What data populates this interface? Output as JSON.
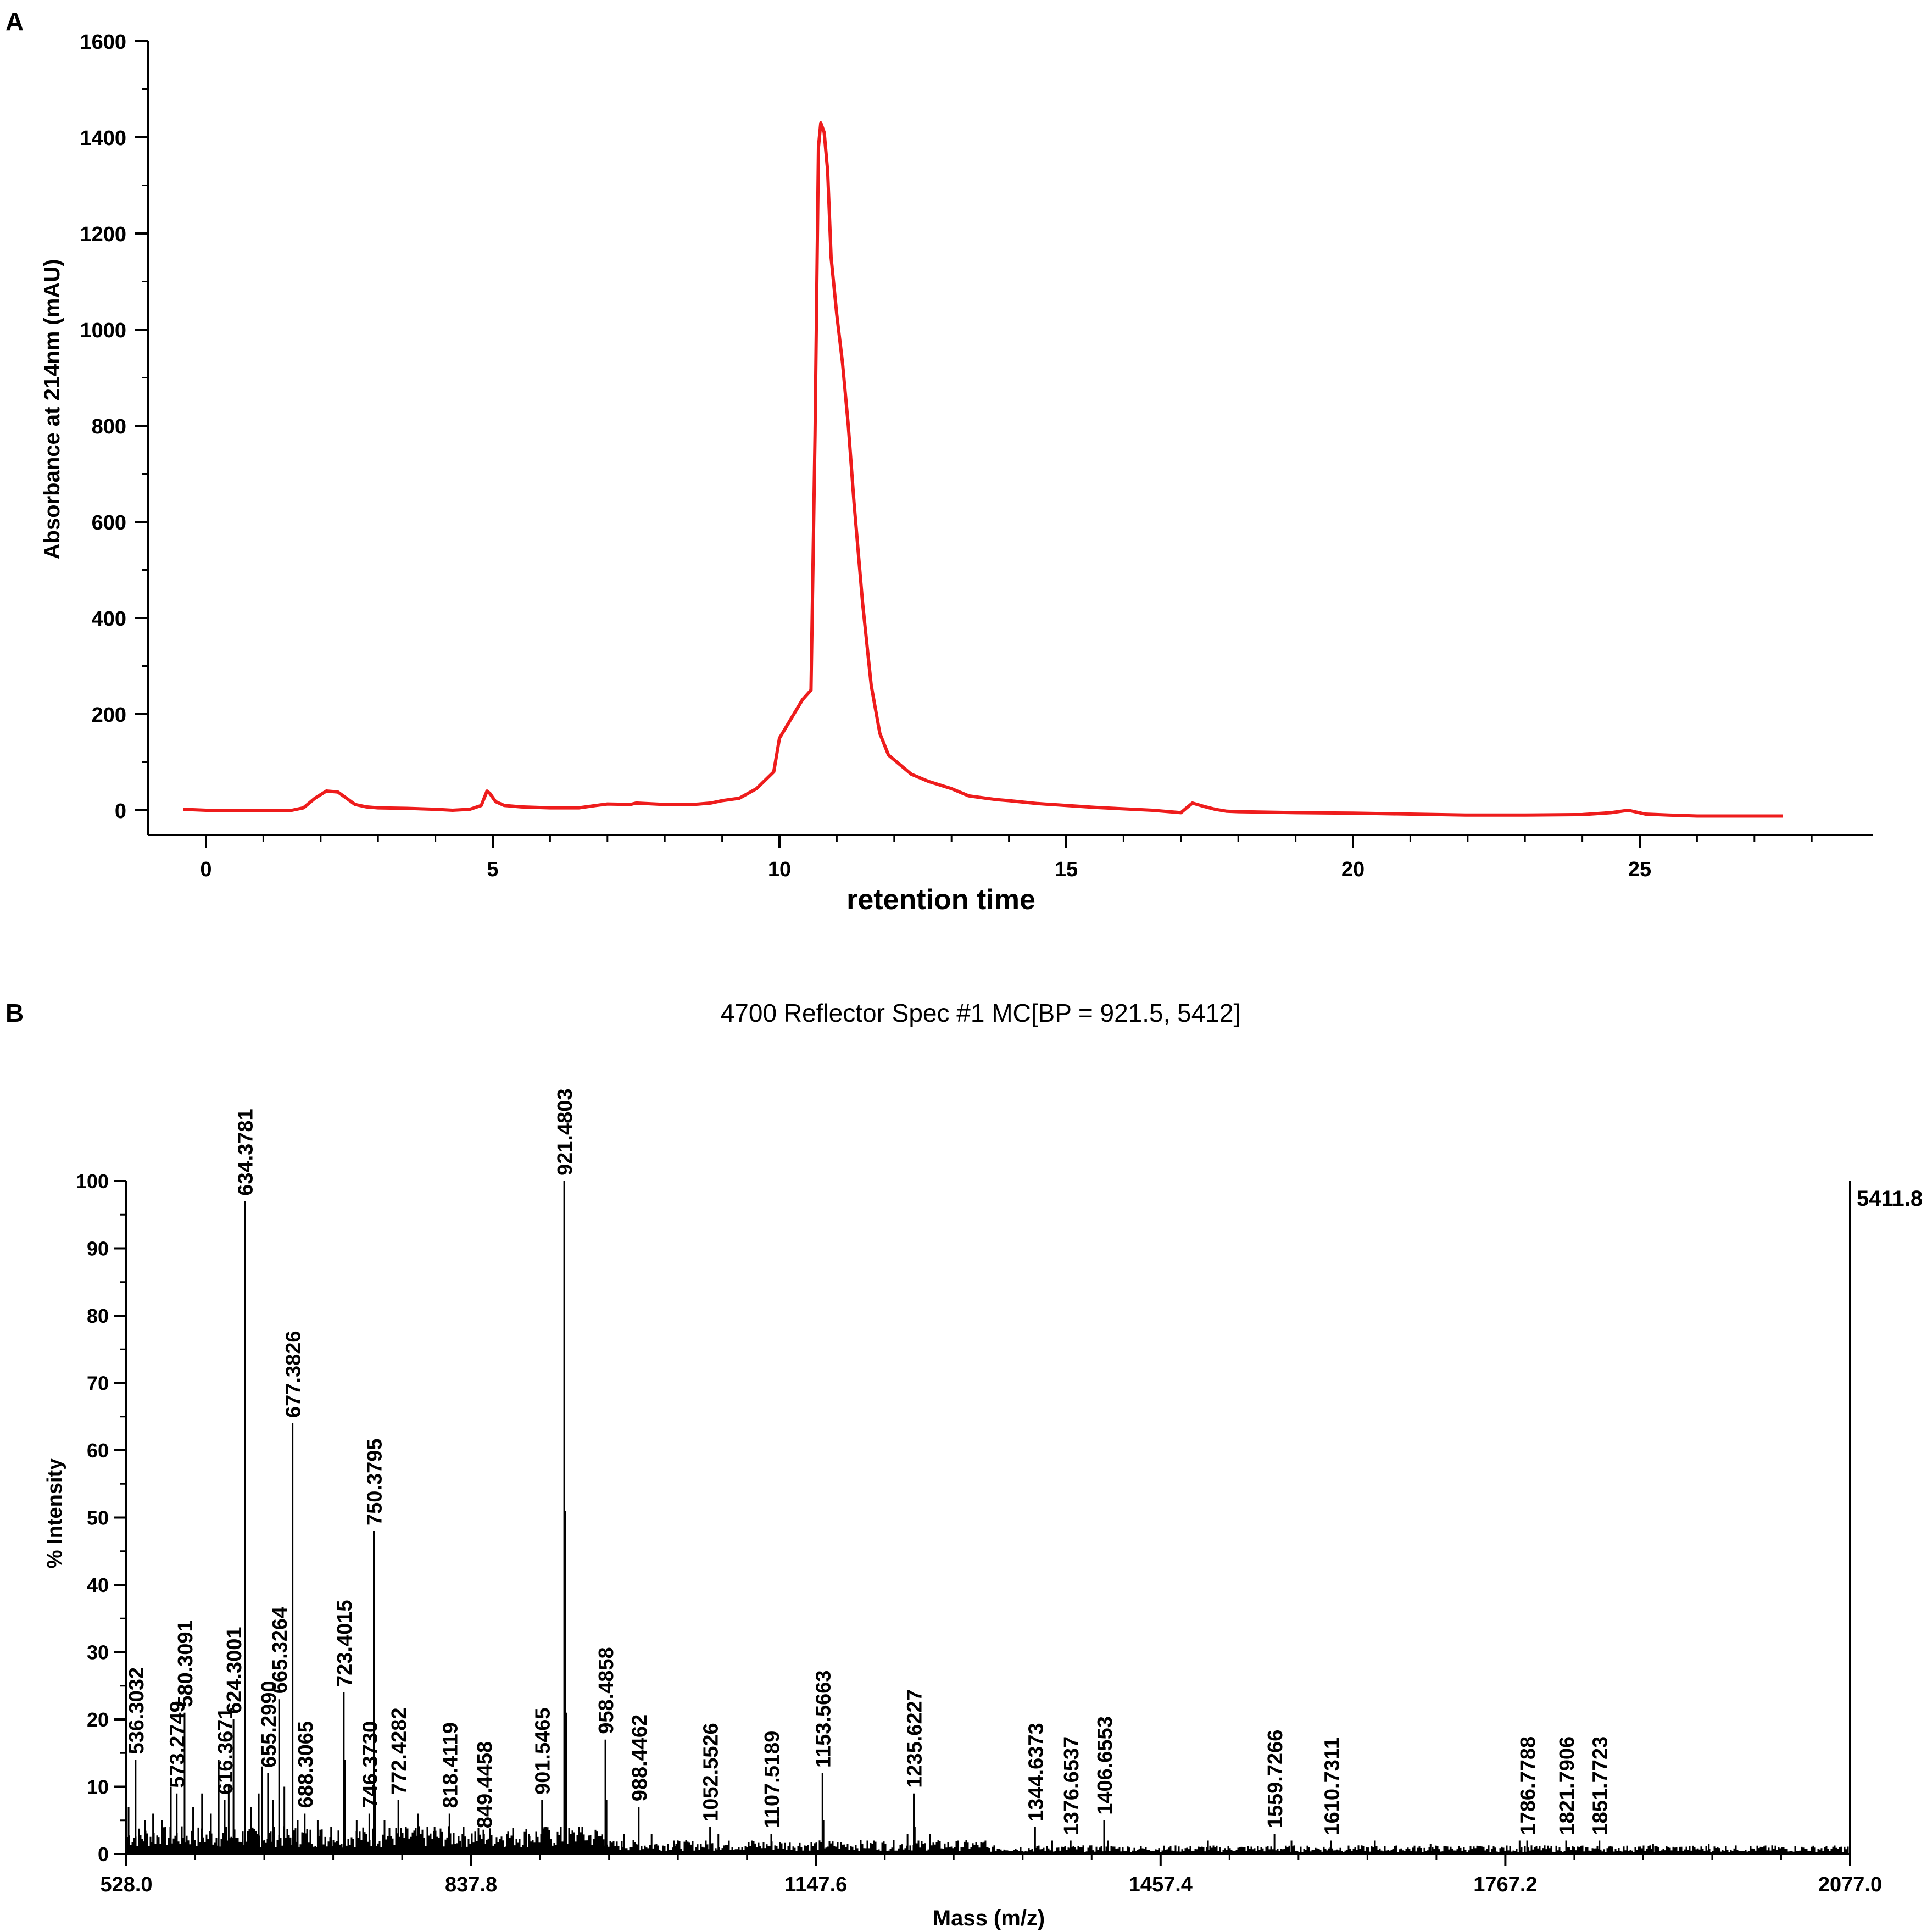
{
  "panels": {
    "a_label": "A",
    "b_label": "B"
  },
  "chart_data": [
    {
      "type": "line",
      "title": "",
      "xlabel": "retention time",
      "ylabel": "Absorbance at 214nm (mAU)",
      "xlim": [
        -1,
        29
      ],
      "ylim": [
        -50,
        1600
      ],
      "xticks": [
        0,
        5,
        10,
        15,
        20,
        25
      ],
      "yticks": [
        0,
        200,
        400,
        600,
        800,
        1000,
        1200,
        1400,
        1600
      ],
      "grid": false,
      "color": "#ee1c1c",
      "series": [
        {
          "x": [
            -0.4,
            0,
            0.5,
            1.0,
            1.5,
            1.7,
            1.9,
            2.1,
            2.3,
            2.45,
            2.6,
            2.8,
            3.0,
            3.5,
            4.0,
            4.3,
            4.6,
            4.8,
            4.9,
            4.95,
            5.05,
            5.2,
            5.5,
            6.0,
            6.5,
            6.8,
            7.0,
            7.4,
            7.5,
            8.0,
            8.5,
            8.8,
            9.0,
            9.3,
            9.6,
            9.9,
            10.0,
            10.2,
            10.4,
            10.55,
            10.62,
            10.68,
            10.72,
            10.78,
            10.84,
            10.9,
            11.0,
            11.1,
            11.2,
            11.3,
            11.45,
            11.6,
            11.75,
            11.9,
            12.1,
            12.3,
            12.6,
            13.0,
            13.3,
            13.6,
            13.8,
            14.0,
            14.5,
            15.0,
            15.5,
            16.0,
            16.5,
            17.0,
            17.1,
            17.2,
            17.4,
            17.6,
            17.8,
            18.0,
            19.0,
            20.0,
            21.0,
            22.0,
            23.0,
            24.0,
            24.5,
            24.8,
            25.1,
            25.5,
            26.0,
            27.0,
            27.5
          ],
          "y": [
            2,
            0,
            0,
            0,
            0,
            5,
            25,
            40,
            38,
            25,
            12,
            7,
            5,
            4,
            2,
            0,
            2,
            10,
            40,
            35,
            18,
            10,
            7,
            5,
            5,
            10,
            13,
            12,
            15,
            12,
            12,
            15,
            20,
            25,
            45,
            80,
            150,
            190,
            230,
            250,
            780,
            1380,
            1430,
            1410,
            1330,
            1150,
            1030,
            930,
            800,
            640,
            430,
            260,
            160,
            115,
            95,
            75,
            60,
            45,
            30,
            25,
            22,
            20,
            14,
            10,
            6,
            3,
            0,
            -5,
            5,
            15,
            8,
            2,
            -2,
            -3,
            -5,
            -6,
            -8,
            -10,
            -10,
            -9,
            -5,
            0,
            -8,
            -10,
            -12,
            -12,
            -12
          ]
        }
      ]
    },
    {
      "type": "bar",
      "title": "4700 Reflector Spec #1 MC[BP = 921.5, 5412]",
      "xlabel": "Mass (m/z)",
      "ylabel": "% Intensity",
      "xlim": [
        528.0,
        2077.0
      ],
      "ylim": [
        0,
        100
      ],
      "xticks": [
        "528.0",
        "837.8",
        "1147.6",
        "1457.4",
        "1767.2",
        "2077.0"
      ],
      "yticks": [
        0,
        10,
        20,
        30,
        40,
        50,
        60,
        70,
        80,
        90,
        100
      ],
      "max_intensity_label": "5411.8",
      "grid": false,
      "peaks": [
        {
          "mz": 536.3032,
          "label": "536.3032",
          "intensity": 14
        },
        {
          "mz": 573.2749,
          "label": "573.2749",
          "intensity": 9
        },
        {
          "mz": 580.3091,
          "label": "580.3091",
          "intensity": 21
        },
        {
          "mz": 616.3671,
          "label": "616.3671",
          "intensity": 8
        },
        {
          "mz": 624.3001,
          "label": "624.3001",
          "intensity": 20
        },
        {
          "mz": 634.3781,
          "label": "634.3781",
          "intensity": 97
        },
        {
          "mz": 655.299,
          "label": "655.2990",
          "intensity": 12
        },
        {
          "mz": 665.3264,
          "label": "665.3264",
          "intensity": 23
        },
        {
          "mz": 677.3826,
          "label": "677.3826",
          "intensity": 64
        },
        {
          "mz": 688.3065,
          "label": "688.3065",
          "intensity": 6
        },
        {
          "mz": 723.4015,
          "label": "723.4015",
          "intensity": 24
        },
        {
          "mz": 746.373,
          "label": "746.3730",
          "intensity": 6
        },
        {
          "mz": 750.3795,
          "label": "750.3795",
          "intensity": 48
        },
        {
          "mz": 772.4282,
          "label": "772.4282",
          "intensity": 8
        },
        {
          "mz": 818.4119,
          "label": "818.4119",
          "intensity": 6
        },
        {
          "mz": 849.4458,
          "label": "849.4458",
          "intensity": 3
        },
        {
          "mz": 901.5465,
          "label": "901.5465",
          "intensity": 8
        },
        {
          "mz": 921.4803,
          "label": "921.4803",
          "intensity": 100
        },
        {
          "mz": 958.4858,
          "label": "958.4858",
          "intensity": 17
        },
        {
          "mz": 988.4462,
          "label": "988.4462",
          "intensity": 7
        },
        {
          "mz": 1052.5526,
          "label": "1052.5526",
          "intensity": 4
        },
        {
          "mz": 1107.5189,
          "label": "1107.5189",
          "intensity": 3
        },
        {
          "mz": 1153.5663,
          "label": "1153.5663",
          "intensity": 12
        },
        {
          "mz": 1235.6227,
          "label": "1235.6227",
          "intensity": 9
        },
        {
          "mz": 1344.6373,
          "label": "1344.6373",
          "intensity": 4
        },
        {
          "mz": 1376.6537,
          "label": "1376.6537",
          "intensity": 2
        },
        {
          "mz": 1406.6553,
          "label": "1406.6553",
          "intensity": 5
        },
        {
          "mz": 1559.7266,
          "label": "1559.7266",
          "intensity": 3
        },
        {
          "mz": 1610.7311,
          "label": "1610.7311",
          "intensity": 2
        },
        {
          "mz": 1786.7788,
          "label": "1786.7788",
          "intensity": 2
        },
        {
          "mz": 1821.7906,
          "label": "1821.7906",
          "intensity": 2
        },
        {
          "mz": 1851.7723,
          "label": "1851.7723",
          "intensity": 2
        }
      ],
      "minor_peaks": [
        {
          "mz": 530.0,
          "intensity": 7
        },
        {
          "mz": 545.0,
          "intensity": 5
        },
        {
          "mz": 552.0,
          "intensity": 6
        },
        {
          "mz": 560.0,
          "intensity": 5
        },
        {
          "mz": 568.0,
          "intensity": 10
        },
        {
          "mz": 588.0,
          "intensity": 7
        },
        {
          "mz": 596.0,
          "intensity": 9
        },
        {
          "mz": 604.0,
          "intensity": 6
        },
        {
          "mz": 611.0,
          "intensity": 14
        },
        {
          "mz": 620.0,
          "intensity": 10
        },
        {
          "mz": 640.0,
          "intensity": 7
        },
        {
          "mz": 647.0,
          "intensity": 9
        },
        {
          "mz": 650.0,
          "intensity": 13
        },
        {
          "mz": 660.0,
          "intensity": 8
        },
        {
          "mz": 670.0,
          "intensity": 10
        },
        {
          "mz": 682.0,
          "intensity": 5
        },
        {
          "mz": 700.0,
          "intensity": 5
        },
        {
          "mz": 712.0,
          "intensity": 4
        },
        {
          "mz": 724.5,
          "intensity": 14
        },
        {
          "mz": 735.0,
          "intensity": 5
        },
        {
          "mz": 751.5,
          "intensity": 10
        },
        {
          "mz": 760.0,
          "intensity": 5
        },
        {
          "mz": 790.0,
          "intensity": 6
        },
        {
          "mz": 805.0,
          "intensity": 4
        },
        {
          "mz": 830.0,
          "intensity": 3
        },
        {
          "mz": 870.0,
          "intensity": 3
        },
        {
          "mz": 890.0,
          "intensity": 3
        },
        {
          "mz": 905.0,
          "intensity": 4
        },
        {
          "mz": 922.5,
          "intensity": 51
        },
        {
          "mz": 923.5,
          "intensity": 21
        },
        {
          "mz": 935.0,
          "intensity": 4
        },
        {
          "mz": 959.5,
          "intensity": 8
        },
        {
          "mz": 975.0,
          "intensity": 3
        },
        {
          "mz": 1000.0,
          "intensity": 3
        },
        {
          "mz": 1020.0,
          "intensity": 2
        },
        {
          "mz": 1060.0,
          "intensity": 3
        },
        {
          "mz": 1090.0,
          "intensity": 2
        },
        {
          "mz": 1154.5,
          "intensity": 5
        },
        {
          "mz": 1200.0,
          "intensity": 2
        },
        {
          "mz": 1230.0,
          "intensity": 3
        },
        {
          "mz": 1236.5,
          "intensity": 4
        },
        {
          "mz": 1250.0,
          "intensity": 3
        },
        {
          "mz": 1300.0,
          "intensity": 2
        },
        {
          "mz": 1360.0,
          "intensity": 2
        },
        {
          "mz": 1410.0,
          "intensity": 2
        },
        {
          "mz": 1500.0,
          "intensity": 2
        },
        {
          "mz": 1575.0,
          "intensity": 2
        },
        {
          "mz": 1650.0,
          "intensity": 2
        },
        {
          "mz": 1700.0,
          "intensity": 1.5
        },
        {
          "mz": 1780.0,
          "intensity": 2
        },
        {
          "mz": 1900.0,
          "intensity": 1.5
        },
        {
          "mz": 1950.0,
          "intensity": 1.5
        },
        {
          "mz": 2000.0,
          "intensity": 1
        }
      ]
    }
  ]
}
